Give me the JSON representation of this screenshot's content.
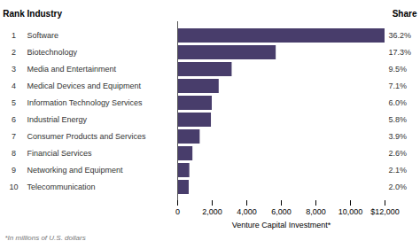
{
  "chart_data": {
    "type": "bar",
    "orientation": "horizontal",
    "categories": [
      "Software",
      "Biotechnology",
      "Media and Entertainment",
      "Medical Devices and Equipment",
      "Information Technology Services",
      "Industrial Energy",
      "Consumer Products and Services",
      "Financial Services",
      "Networking and Equipment",
      "Telecommunication"
    ],
    "values": [
      12000,
      5700,
      3150,
      2400,
      2000,
      1950,
      1300,
      880,
      700,
      665
    ],
    "ranks": [
      1,
      2,
      3,
      4,
      5,
      6,
      7,
      8,
      9,
      10
    ],
    "shares": [
      "36.2%",
      "17.3%",
      "9.5%",
      "7.1%",
      "6.0%",
      "5.8%",
      "3.9%",
      "2.6%",
      "2.1%",
      "2.0%"
    ],
    "rank_label": "Rank",
    "industry_label": "Industry",
    "share_label": "Share",
    "xlabel": "Venture Capital Investment*",
    "footnote": "*In millions of U.S. dollars",
    "color": "#483d6b",
    "xlim": [
      0,
      12000
    ],
    "xticks": [
      0,
      {
        "value": 2000,
        "label": "2,000"
      },
      {
        "value": 4000,
        "label": "4,000"
      },
      {
        "value": 6000,
        "label": "6,000"
      },
      {
        "value": 8000,
        "label": "8,000"
      },
      {
        "value": 10000,
        "label": "10,000"
      },
      {
        "value": 12000,
        "label": "$12,000"
      }
    ],
    "grid": false
  }
}
